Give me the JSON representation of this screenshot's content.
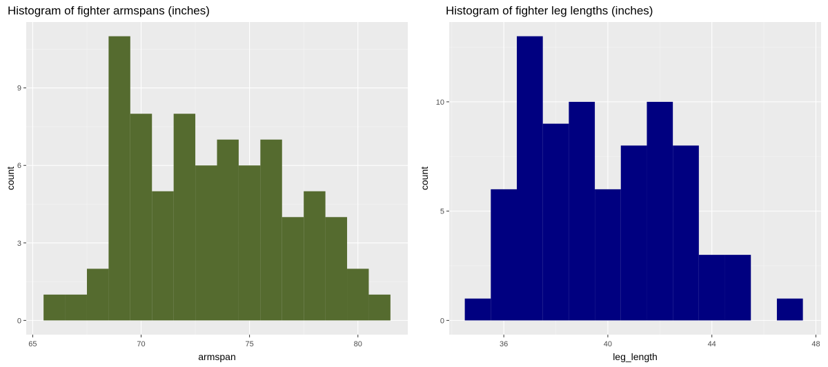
{
  "chart_data": [
    {
      "type": "histogram",
      "title": "Histogram of fighter armspans (inches)",
      "xlabel": "armspan",
      "ylabel": "count",
      "fill": "#556B2F",
      "bin_width": 1,
      "bins": [
        {
          "x0": 65.5,
          "x1": 66.5,
          "count": 1
        },
        {
          "x0": 66.5,
          "x1": 67.5,
          "count": 1
        },
        {
          "x0": 67.5,
          "x1": 68.5,
          "count": 2
        },
        {
          "x0": 68.5,
          "x1": 69.5,
          "count": 11
        },
        {
          "x0": 69.5,
          "x1": 70.5,
          "count": 8
        },
        {
          "x0": 70.5,
          "x1": 71.5,
          "count": 5
        },
        {
          "x0": 71.5,
          "x1": 72.5,
          "count": 8
        },
        {
          "x0": 72.5,
          "x1": 73.5,
          "count": 6
        },
        {
          "x0": 73.5,
          "x1": 74.5,
          "count": 7
        },
        {
          "x0": 74.5,
          "x1": 75.5,
          "count": 6
        },
        {
          "x0": 75.5,
          "x1": 76.5,
          "count": 7
        },
        {
          "x0": 76.5,
          "x1": 77.5,
          "count": 4
        },
        {
          "x0": 77.5,
          "x1": 78.5,
          "count": 5
        },
        {
          "x0": 78.5,
          "x1": 79.5,
          "count": 4
        },
        {
          "x0": 79.5,
          "x1": 80.5,
          "count": 2
        },
        {
          "x0": 80.5,
          "x1": 81.5,
          "count": 1
        }
      ],
      "xlim": [
        64.7,
        82.3
      ],
      "ylim": [
        -0.55,
        11.55
      ],
      "x_ticks": [
        65,
        70,
        75,
        80
      ],
      "y_ticks": [
        0,
        3,
        6,
        9
      ],
      "grid": true
    },
    {
      "type": "histogram",
      "title": "Histogram of fighter leg lengths (inches)",
      "xlabel": "leg_length",
      "ylabel": "count",
      "fill": "#000080",
      "bin_width": 1,
      "bins": [
        {
          "x0": 34.5,
          "x1": 35.5,
          "count": 1
        },
        {
          "x0": 35.5,
          "x1": 36.5,
          "count": 6
        },
        {
          "x0": 36.5,
          "x1": 37.5,
          "count": 13
        },
        {
          "x0": 37.5,
          "x1": 38.5,
          "count": 9
        },
        {
          "x0": 38.5,
          "x1": 39.5,
          "count": 10
        },
        {
          "x0": 39.5,
          "x1": 40.5,
          "count": 6
        },
        {
          "x0": 40.5,
          "x1": 41.5,
          "count": 8
        },
        {
          "x0": 41.5,
          "x1": 42.5,
          "count": 10
        },
        {
          "x0": 42.5,
          "x1": 43.5,
          "count": 8
        },
        {
          "x0": 43.5,
          "x1": 44.5,
          "count": 3
        },
        {
          "x0": 44.5,
          "x1": 45.5,
          "count": 3
        },
        {
          "x0": 45.5,
          "x1": 46.5,
          "count": 0
        },
        {
          "x0": 46.5,
          "x1": 47.5,
          "count": 1
        }
      ],
      "xlim": [
        33.9,
        48.2
      ],
      "ylim": [
        -0.65,
        13.65
      ],
      "x_ticks": [
        36,
        40,
        44,
        48
      ],
      "y_ticks": [
        0,
        5,
        10
      ],
      "grid": true
    }
  ]
}
